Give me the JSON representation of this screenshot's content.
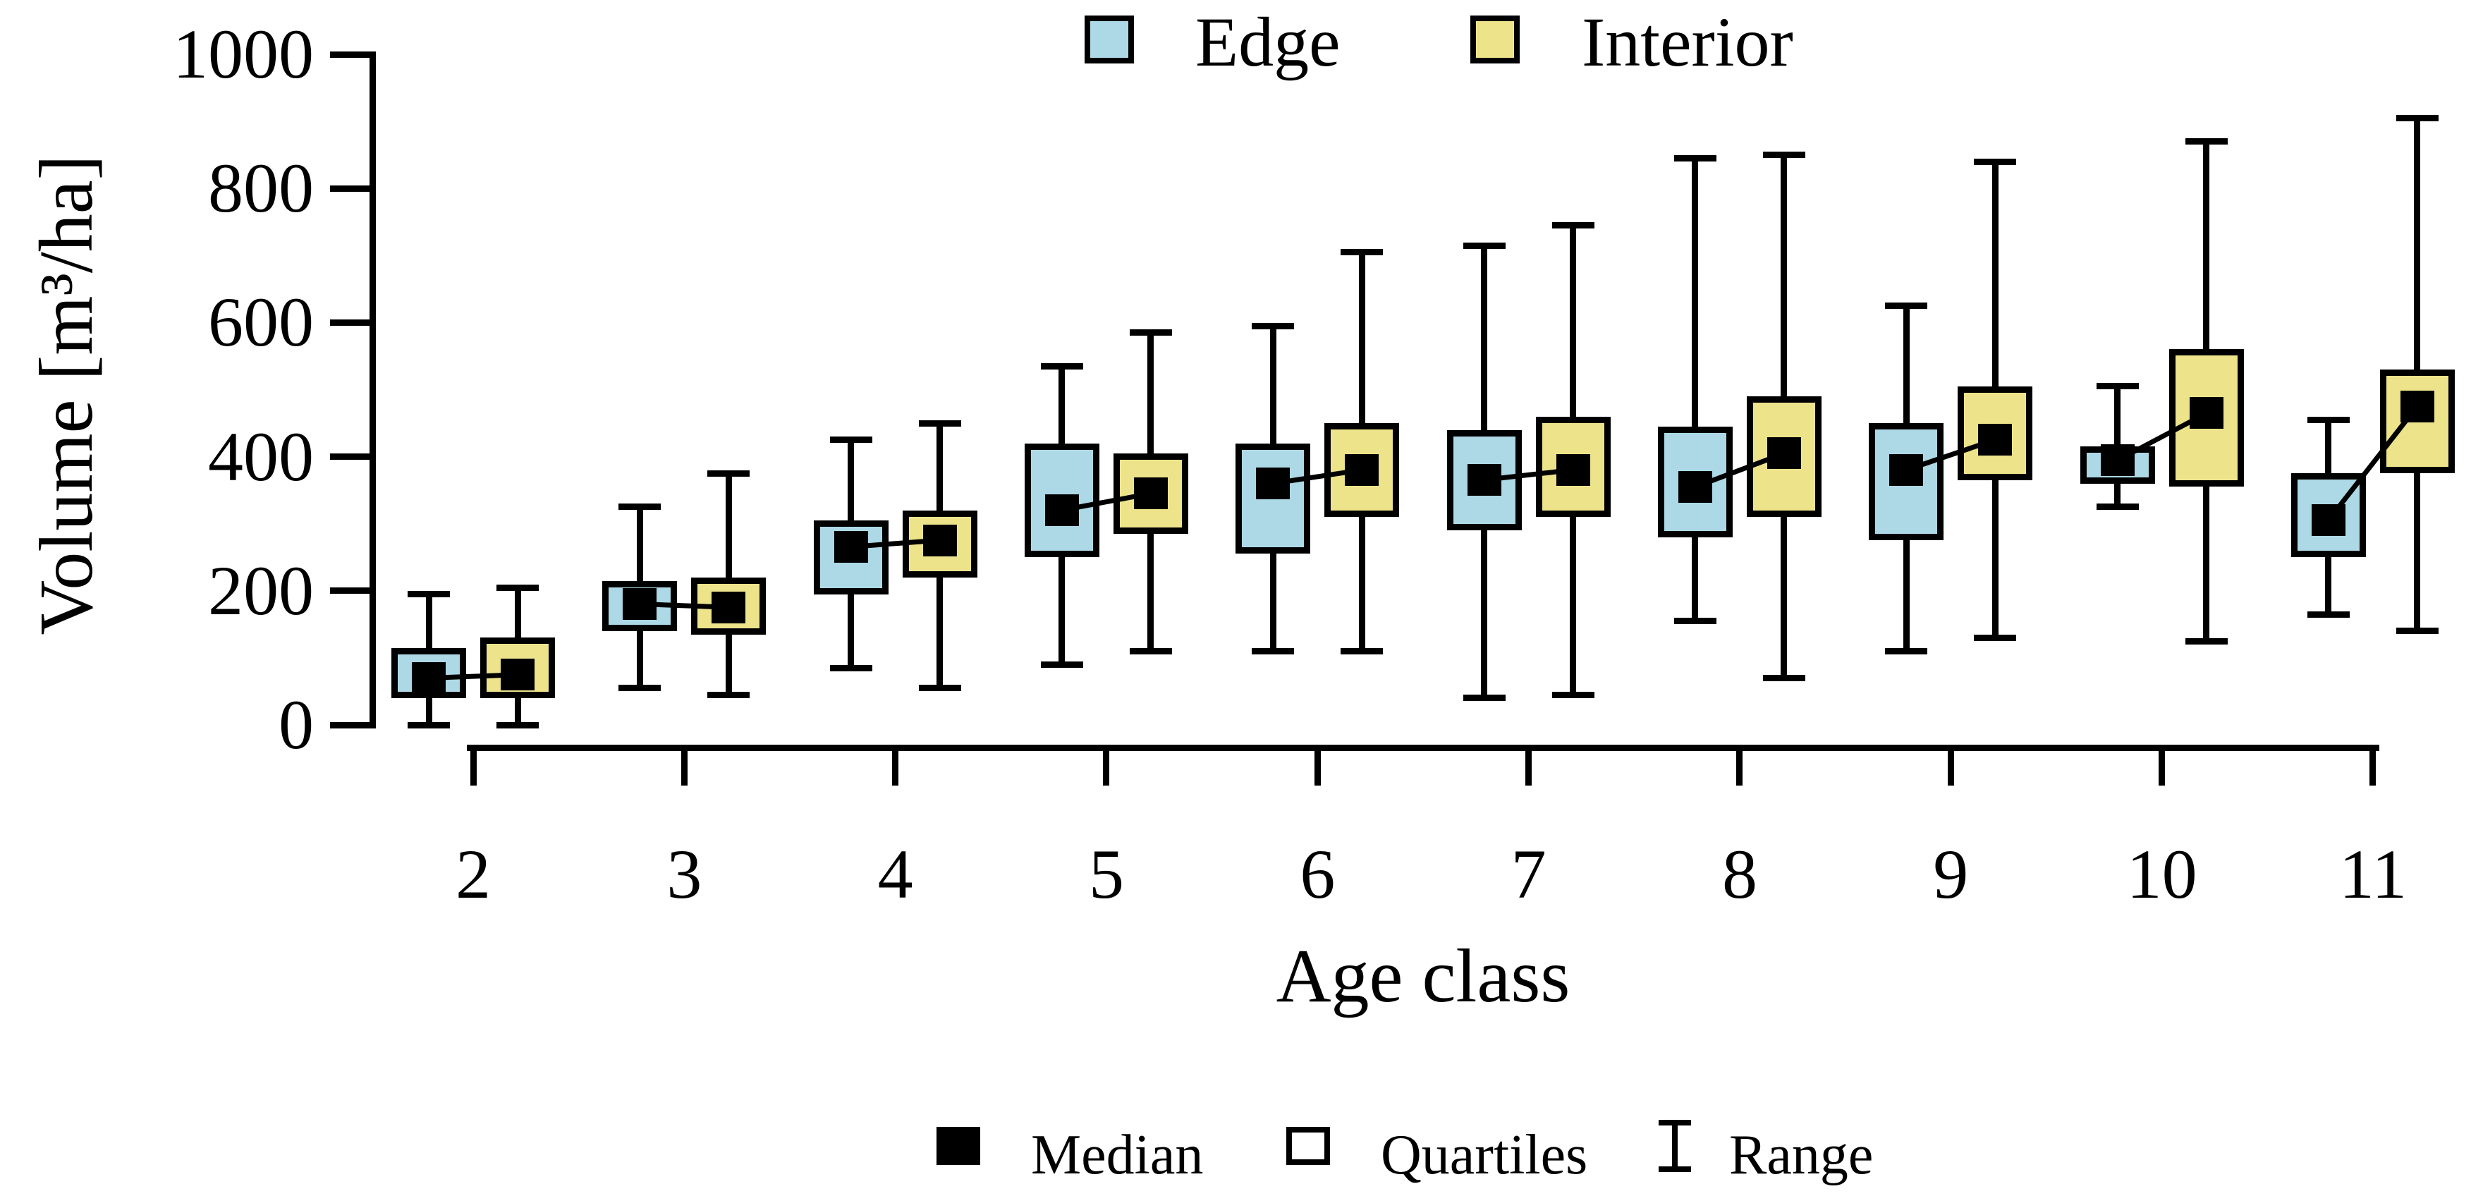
{
  "chart_data": {
    "type": "grouped_boxplot",
    "title": "",
    "xlabel": "Age class",
    "ylabel": "Volume [m³/ha]",
    "ylim": [
      0,
      1000
    ],
    "yticks": [
      0,
      200,
      400,
      600,
      800,
      1000
    ],
    "categories": [
      "2",
      "3",
      "4",
      "5",
      "6",
      "7",
      "8",
      "9",
      "10",
      "11"
    ],
    "grid": false,
    "legend_top": {
      "position": "top-center",
      "items": [
        {
          "label": "Edge",
          "color": "#ADD8E6"
        },
        {
          "label": "Interior",
          "color": "#EDE38B"
        }
      ]
    },
    "legend_bottom": {
      "position": "below-x-axis",
      "items": [
        {
          "label": "Median",
          "symbol": "filled-square"
        },
        {
          "label": "Quartiles",
          "symbol": "open-square"
        },
        {
          "label": "Range",
          "symbol": "range-bar"
        }
      ]
    },
    "series": [
      {
        "name": "Edge",
        "color": "#ADD8E6",
        "boxes": [
          {
            "category": "2",
            "min": 0,
            "q1": 40,
            "median": 70,
            "q3": 115,
            "max": 195
          },
          {
            "category": "3",
            "min": 55,
            "q1": 140,
            "median": 180,
            "q3": 215,
            "max": 325
          },
          {
            "category": "4",
            "min": 85,
            "q1": 195,
            "median": 265,
            "q3": 305,
            "max": 425
          },
          {
            "category": "5",
            "min": 90,
            "q1": 250,
            "median": 320,
            "q3": 420,
            "max": 535
          },
          {
            "category": "6",
            "min": 110,
            "q1": 255,
            "median": 360,
            "q3": 420,
            "max": 595
          },
          {
            "category": "7",
            "min": 40,
            "q1": 290,
            "median": 365,
            "q3": 440,
            "max": 715
          },
          {
            "category": "8",
            "min": 155,
            "q1": 280,
            "median": 355,
            "q3": 445,
            "max": 845
          },
          {
            "category": "9",
            "min": 110,
            "q1": 275,
            "median": 380,
            "q3": 450,
            "max": 625
          },
          {
            "category": "10",
            "min": 325,
            "q1": 360,
            "median": 395,
            "q3": 415,
            "max": 505
          },
          {
            "category": "11",
            "min": 165,
            "q1": 250,
            "median": 305,
            "q3": 375,
            "max": 455
          }
        ]
      },
      {
        "name": "Interior",
        "color": "#EDE38B",
        "boxes": [
          {
            "category": "2",
            "min": 0,
            "q1": 40,
            "median": 75,
            "q3": 130,
            "max": 205
          },
          {
            "category": "3",
            "min": 45,
            "q1": 135,
            "median": 175,
            "q3": 220,
            "max": 375
          },
          {
            "category": "4",
            "min": 55,
            "q1": 220,
            "median": 275,
            "q3": 320,
            "max": 450
          },
          {
            "category": "5",
            "min": 110,
            "q1": 285,
            "median": 345,
            "q3": 405,
            "max": 585
          },
          {
            "category": "6",
            "min": 110,
            "q1": 310,
            "median": 380,
            "q3": 450,
            "max": 705
          },
          {
            "category": "7",
            "min": 45,
            "q1": 310,
            "median": 380,
            "q3": 460,
            "max": 745
          },
          {
            "category": "8",
            "min": 70,
            "q1": 310,
            "median": 405,
            "q3": 490,
            "max": 850
          },
          {
            "category": "9",
            "min": 130,
            "q1": 365,
            "median": 425,
            "q3": 505,
            "max": 840
          },
          {
            "category": "10",
            "min": 125,
            "q1": 355,
            "median": 465,
            "q3": 560,
            "max": 870
          },
          {
            "category": "11",
            "min": 140,
            "q1": 375,
            "median": 475,
            "q3": 530,
            "max": 905
          }
        ]
      }
    ],
    "annotations": {
      "median_connector_lines": "each age class: line joining Edge median square to Interior median square"
    }
  }
}
